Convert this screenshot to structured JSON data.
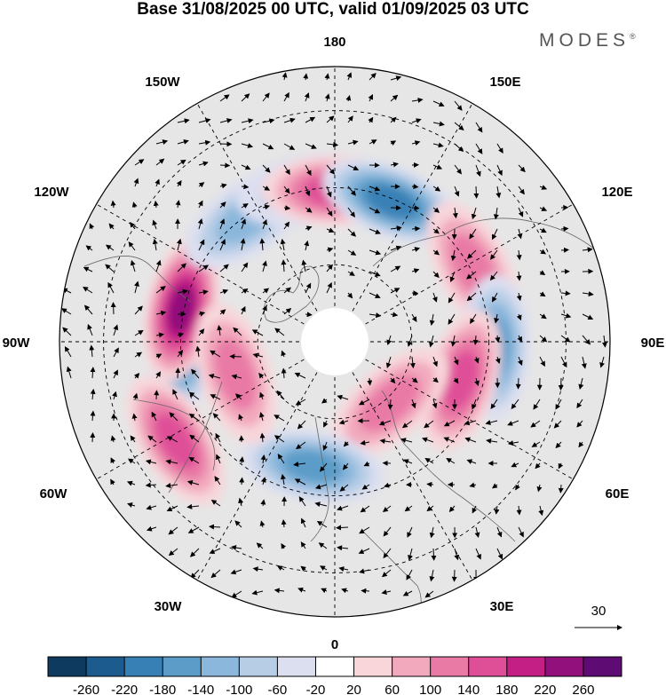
{
  "title": "Base 31/08/2025 00 UTC, valid 01/09/2025 03 UTC",
  "brand": "MODES",
  "brand_mark": "®",
  "longitude_labels": [
    "180",
    "150E",
    "120E",
    "90E",
    "60E",
    "30E",
    "0",
    "30W",
    "60W",
    "90W",
    "120W",
    "150W"
  ],
  "wind_reference": {
    "value": "30"
  },
  "colorbar": {
    "ticks": [
      "-260",
      "-220",
      "-180",
      "-140",
      "-100",
      "-60",
      "-20",
      "20",
      "60",
      "100",
      "140",
      "180",
      "220",
      "260"
    ],
    "colors": [
      "#0d3a5e",
      "#1b5b8e",
      "#3780b5",
      "#5c9cc8",
      "#8bb7dc",
      "#b7cde6",
      "#dcdff0",
      "#ffffff",
      "#f8d6da",
      "#f2a9bd",
      "#e97aa6",
      "#df4f98",
      "#c41f85",
      "#92107c",
      "#5e0b73"
    ]
  },
  "map": {
    "ocean_color": "#e6e6e6",
    "anomalies": [
      {
        "name": "low-90w",
        "value": -230,
        "lon": -92,
        "r": 0.55
      },
      {
        "name": "high-100w",
        "value": 230,
        "lon": -102,
        "r": 0.57
      },
      {
        "name": "low-145w",
        "value": -130,
        "lon": -145,
        "r": 0.55
      },
      {
        "name": "low-170w",
        "value": -90,
        "lon": -170,
        "r": 0.56
      },
      {
        "name": "high-180",
        "value": 140,
        "lon": 180,
        "r": 0.55
      },
      {
        "name": "low-155e",
        "value": -180,
        "lon": 158,
        "r": 0.55
      },
      {
        "name": "high-120e",
        "value": 120,
        "lon": 118,
        "r": 0.57
      },
      {
        "name": "low-90e",
        "value": -150,
        "lon": 88,
        "r": 0.58
      },
      {
        "name": "high-70e",
        "value": 150,
        "lon": 73,
        "r": 0.48
      },
      {
        "name": "high-45e",
        "value": 120,
        "lon": 42,
        "r": 0.3
      },
      {
        "name": "low-15w",
        "value": -170,
        "lon": -10,
        "r": 0.46
      },
      {
        "name": "high-60w",
        "value": 150,
        "lon": -58,
        "r": 0.68
      },
      {
        "name": "high-75w",
        "value": 120,
        "lon": -72,
        "r": 0.38
      }
    ]
  }
}
